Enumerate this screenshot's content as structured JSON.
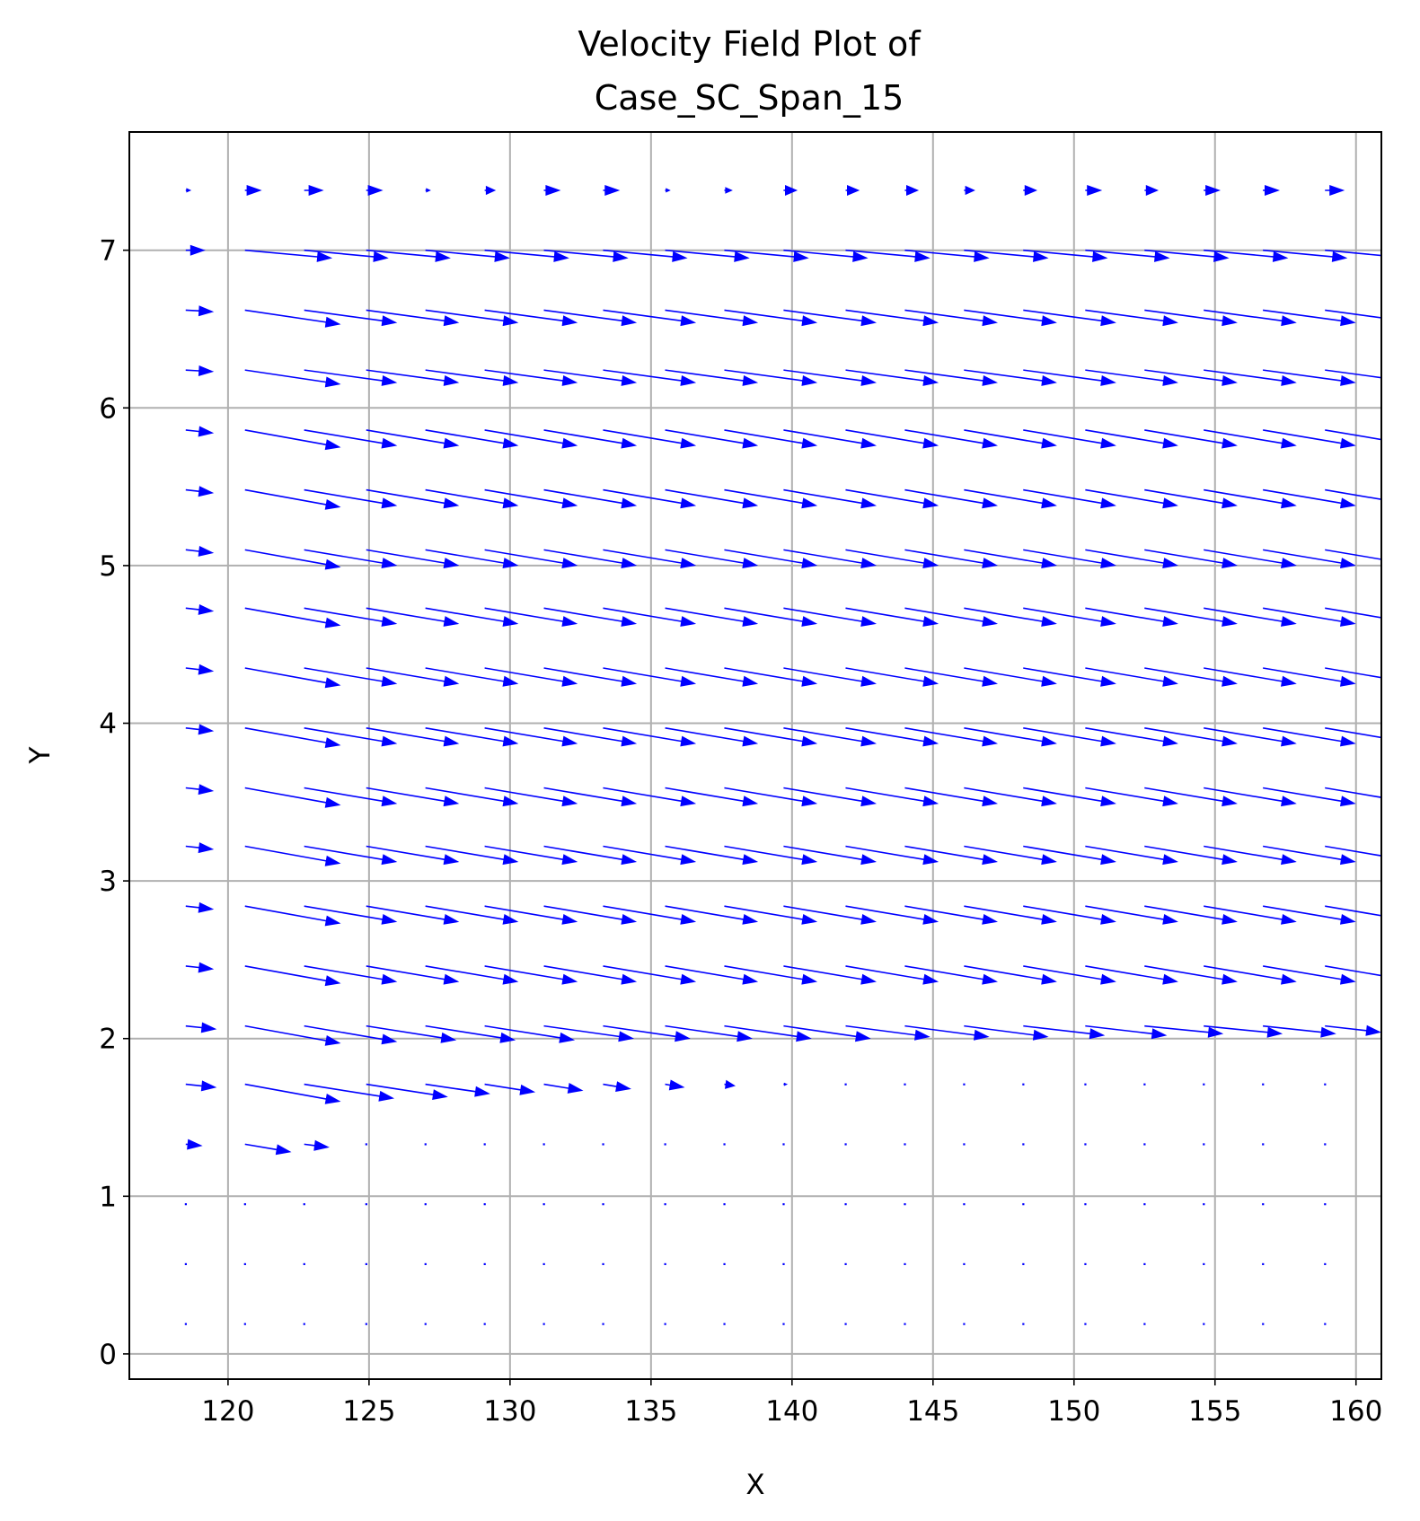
{
  "chart_data": {
    "type": "quiver",
    "title": [
      "Velocity Field Plot of",
      "Case_SC_Span_15"
    ],
    "xlabel": "X",
    "ylabel": "Y",
    "xlim": [
      116.5,
      160.9
    ],
    "ylim": [
      -0.16,
      7.75
    ],
    "xticks": [
      120,
      125,
      130,
      135,
      140,
      145,
      150,
      155,
      160
    ],
    "yticks": [
      0,
      1,
      2,
      3,
      4,
      5,
      6,
      7
    ],
    "grid": true,
    "arrow_color": "#0000ff",
    "x": [
      118.5,
      120.6,
      122.7,
      124.9,
      127.0,
      129.1,
      131.2,
      133.3,
      135.5,
      137.6,
      139.7,
      141.9,
      144.0,
      146.1,
      148.2,
      150.4,
      152.5,
      154.6,
      156.7,
      158.9
    ],
    "y": [
      0.19,
      0.57,
      0.95,
      1.33,
      1.71,
      2.08,
      2.46,
      2.84,
      3.22,
      3.59,
      3.97,
      4.35,
      4.73,
      5.1,
      5.48,
      5.86,
      6.24,
      6.62,
      7.0,
      7.38
    ],
    "rows": [
      {
        "y": 0.19,
        "u": [
          0,
          0,
          0,
          0,
          0,
          0,
          0,
          0,
          0,
          0,
          0,
          0,
          0,
          0,
          0,
          0,
          0,
          0,
          0,
          0
        ],
        "v": [
          0,
          0,
          0,
          0,
          0,
          0,
          0,
          0,
          0,
          0,
          0,
          0,
          0,
          0,
          0,
          0,
          0,
          0,
          0,
          0
        ]
      },
      {
        "y": 0.57,
        "u": [
          0,
          0,
          0,
          0,
          0,
          0,
          0,
          0,
          0,
          0,
          0,
          0,
          0,
          0,
          0,
          0,
          0,
          0,
          0,
          0
        ],
        "v": [
          0,
          0,
          0,
          0,
          0,
          0,
          0,
          0,
          0,
          0,
          0,
          0,
          0,
          0,
          0,
          0,
          0,
          0,
          0,
          0
        ]
      },
      {
        "y": 0.95,
        "u": [
          0,
          0,
          0,
          0,
          0,
          0,
          0,
          0,
          0,
          0,
          0,
          0,
          0,
          0,
          0,
          0,
          0,
          0,
          0,
          0
        ],
        "v": [
          0,
          0,
          0,
          0,
          0,
          0,
          0,
          0,
          0,
          0,
          0,
          0,
          0,
          0,
          0,
          0,
          0,
          0,
          0,
          0
        ]
      },
      {
        "y": 1.33,
        "u": [
          0.6,
          1.65,
          0.9,
          0,
          0,
          0,
          0,
          0,
          0,
          0,
          0,
          0,
          0,
          0,
          0,
          0,
          0,
          0,
          0,
          0
        ],
        "v": [
          -0.01,
          -0.05,
          -0.02,
          0,
          0,
          0,
          0,
          0,
          0,
          0,
          0,
          0,
          0,
          0,
          0,
          0,
          0,
          0,
          0,
          0
        ]
      },
      {
        "y": 1.71,
        "u": [
          1.1,
          3.4,
          3.2,
          2.9,
          2.3,
          1.8,
          1.4,
          1.0,
          0.7,
          0.4,
          0.15,
          0.05,
          0,
          0,
          0,
          0,
          0,
          0,
          0,
          0
        ],
        "v": [
          -0.02,
          -0.11,
          -0.09,
          -0.08,
          -0.06,
          -0.05,
          -0.04,
          -0.03,
          -0.02,
          -0.01,
          0,
          0,
          0,
          0,
          0,
          0,
          0,
          0,
          0,
          0
        ]
      },
      {
        "y": 2.08,
        "u": [
          1.1,
          3.4,
          3.3,
          3.2,
          3.2,
          3.2,
          3.2,
          3.1,
          3.1,
          3.1,
          3.1,
          3.0,
          3.0,
          3.0,
          2.9,
          2.9,
          2.8,
          2.8,
          2.6,
          2.0
        ],
        "v": [
          -0.02,
          -0.11,
          -0.1,
          -0.09,
          -0.09,
          -0.09,
          -0.08,
          -0.08,
          -0.08,
          -0.08,
          -0.08,
          -0.07,
          -0.07,
          -0.07,
          -0.06,
          -0.06,
          -0.05,
          -0.05,
          -0.05,
          -0.04
        ]
      },
      {
        "y": 2.46,
        "u": [
          1.0,
          3.4,
          3.3,
          3.3,
          3.3,
          3.3,
          3.3,
          3.3,
          3.3,
          3.3,
          3.3,
          3.3,
          3.3,
          3.3,
          3.3,
          3.3,
          3.3,
          3.3,
          3.3,
          3.3
        ],
        "v": [
          -0.02,
          -0.11,
          -0.1,
          -0.1,
          -0.1,
          -0.1,
          -0.1,
          -0.1,
          -0.1,
          -0.1,
          -0.1,
          -0.1,
          -0.1,
          -0.1,
          -0.1,
          -0.1,
          -0.1,
          -0.1,
          -0.1,
          -0.1
        ]
      },
      {
        "y": 2.84,
        "u": [
          1.0,
          3.4,
          3.3,
          3.3,
          3.3,
          3.3,
          3.3,
          3.3,
          3.3,
          3.3,
          3.3,
          3.3,
          3.3,
          3.3,
          3.3,
          3.3,
          3.3,
          3.3,
          3.3,
          3.3
        ],
        "v": [
          -0.02,
          -0.11,
          -0.1,
          -0.1,
          -0.1,
          -0.1,
          -0.1,
          -0.1,
          -0.1,
          -0.1,
          -0.1,
          -0.1,
          -0.1,
          -0.1,
          -0.1,
          -0.1,
          -0.1,
          -0.1,
          -0.1,
          -0.1
        ]
      },
      {
        "y": 3.22,
        "u": [
          1.0,
          3.4,
          3.3,
          3.3,
          3.3,
          3.3,
          3.3,
          3.3,
          3.3,
          3.3,
          3.3,
          3.3,
          3.3,
          3.3,
          3.3,
          3.3,
          3.3,
          3.3,
          3.3,
          3.3
        ],
        "v": [
          -0.02,
          -0.11,
          -0.1,
          -0.1,
          -0.1,
          -0.1,
          -0.1,
          -0.1,
          -0.1,
          -0.1,
          -0.1,
          -0.1,
          -0.1,
          -0.1,
          -0.1,
          -0.1,
          -0.1,
          -0.1,
          -0.1,
          -0.1
        ]
      },
      {
        "y": 3.59,
        "u": [
          1.0,
          3.4,
          3.3,
          3.3,
          3.3,
          3.3,
          3.3,
          3.3,
          3.3,
          3.3,
          3.3,
          3.3,
          3.3,
          3.3,
          3.3,
          3.3,
          3.3,
          3.3,
          3.3,
          3.3
        ],
        "v": [
          -0.02,
          -0.11,
          -0.1,
          -0.1,
          -0.1,
          -0.1,
          -0.1,
          -0.1,
          -0.1,
          -0.1,
          -0.1,
          -0.1,
          -0.1,
          -0.1,
          -0.1,
          -0.1,
          -0.1,
          -0.1,
          -0.1,
          -0.1
        ]
      },
      {
        "y": 3.97,
        "u": [
          1.0,
          3.4,
          3.3,
          3.3,
          3.3,
          3.3,
          3.3,
          3.3,
          3.3,
          3.3,
          3.3,
          3.3,
          3.3,
          3.3,
          3.3,
          3.3,
          3.3,
          3.3,
          3.3,
          3.3
        ],
        "v": [
          -0.02,
          -0.11,
          -0.1,
          -0.1,
          -0.1,
          -0.1,
          -0.1,
          -0.1,
          -0.1,
          -0.1,
          -0.1,
          -0.1,
          -0.1,
          -0.1,
          -0.1,
          -0.1,
          -0.1,
          -0.1,
          -0.1,
          -0.1
        ]
      },
      {
        "y": 4.35,
        "u": [
          1.0,
          3.4,
          3.3,
          3.3,
          3.3,
          3.3,
          3.3,
          3.3,
          3.3,
          3.3,
          3.3,
          3.3,
          3.3,
          3.3,
          3.3,
          3.3,
          3.3,
          3.3,
          3.3,
          3.3
        ],
        "v": [
          -0.02,
          -0.11,
          -0.1,
          -0.1,
          -0.1,
          -0.1,
          -0.1,
          -0.1,
          -0.1,
          -0.1,
          -0.1,
          -0.1,
          -0.1,
          -0.1,
          -0.1,
          -0.1,
          -0.1,
          -0.1,
          -0.1,
          -0.1
        ]
      },
      {
        "y": 4.73,
        "u": [
          1.0,
          3.4,
          3.3,
          3.3,
          3.3,
          3.3,
          3.3,
          3.3,
          3.3,
          3.3,
          3.3,
          3.3,
          3.3,
          3.3,
          3.3,
          3.3,
          3.3,
          3.3,
          3.3,
          3.3
        ],
        "v": [
          -0.02,
          -0.11,
          -0.1,
          -0.1,
          -0.1,
          -0.1,
          -0.1,
          -0.1,
          -0.1,
          -0.1,
          -0.1,
          -0.1,
          -0.1,
          -0.1,
          -0.1,
          -0.1,
          -0.1,
          -0.1,
          -0.1,
          -0.1
        ]
      },
      {
        "y": 5.1,
        "u": [
          1.0,
          3.4,
          3.3,
          3.3,
          3.3,
          3.3,
          3.3,
          3.3,
          3.3,
          3.3,
          3.3,
          3.3,
          3.3,
          3.3,
          3.3,
          3.3,
          3.3,
          3.3,
          3.3,
          3.3
        ],
        "v": [
          -0.02,
          -0.11,
          -0.1,
          -0.1,
          -0.1,
          -0.1,
          -0.1,
          -0.1,
          -0.1,
          -0.1,
          -0.1,
          -0.1,
          -0.1,
          -0.1,
          -0.1,
          -0.1,
          -0.1,
          -0.1,
          -0.1,
          -0.1
        ]
      },
      {
        "y": 5.48,
        "u": [
          1.0,
          3.4,
          3.3,
          3.3,
          3.3,
          3.3,
          3.3,
          3.3,
          3.3,
          3.3,
          3.3,
          3.3,
          3.3,
          3.3,
          3.3,
          3.3,
          3.3,
          3.3,
          3.3,
          3.3
        ],
        "v": [
          -0.02,
          -0.11,
          -0.1,
          -0.1,
          -0.1,
          -0.1,
          -0.1,
          -0.1,
          -0.1,
          -0.1,
          -0.1,
          -0.1,
          -0.1,
          -0.1,
          -0.1,
          -0.1,
          -0.1,
          -0.1,
          -0.1,
          -0.1
        ]
      },
      {
        "y": 5.86,
        "u": [
          1.0,
          3.4,
          3.3,
          3.3,
          3.3,
          3.3,
          3.3,
          3.3,
          3.3,
          3.3,
          3.3,
          3.3,
          3.3,
          3.3,
          3.3,
          3.3,
          3.3,
          3.3,
          3.3,
          3.3
        ],
        "v": [
          -0.02,
          -0.11,
          -0.1,
          -0.1,
          -0.1,
          -0.1,
          -0.1,
          -0.1,
          -0.1,
          -0.1,
          -0.1,
          -0.1,
          -0.1,
          -0.1,
          -0.1,
          -0.1,
          -0.1,
          -0.1,
          -0.1,
          -0.1
        ]
      },
      {
        "y": 6.24,
        "u": [
          1.0,
          3.4,
          3.3,
          3.3,
          3.3,
          3.3,
          3.3,
          3.3,
          3.3,
          3.3,
          3.3,
          3.3,
          3.3,
          3.3,
          3.3,
          3.3,
          3.3,
          3.3,
          3.3,
          3.3
        ],
        "v": [
          -0.01,
          -0.09,
          -0.08,
          -0.08,
          -0.08,
          -0.08,
          -0.08,
          -0.08,
          -0.08,
          -0.08,
          -0.08,
          -0.08,
          -0.08,
          -0.08,
          -0.08,
          -0.08,
          -0.08,
          -0.08,
          -0.08,
          -0.08
        ]
      },
      {
        "y": 6.62,
        "u": [
          1.0,
          3.4,
          3.3,
          3.3,
          3.3,
          3.3,
          3.3,
          3.3,
          3.3,
          3.3,
          3.3,
          3.3,
          3.3,
          3.3,
          3.3,
          3.3,
          3.3,
          3.3,
          3.3,
          3.3
        ],
        "v": [
          -0.01,
          -0.09,
          -0.08,
          -0.08,
          -0.08,
          -0.08,
          -0.08,
          -0.08,
          -0.08,
          -0.08,
          -0.08,
          -0.08,
          -0.08,
          -0.08,
          -0.08,
          -0.08,
          -0.08,
          -0.08,
          -0.08,
          -0.08
        ]
      },
      {
        "y": 7.0,
        "u": [
          0.7,
          3.1,
          3.0,
          3.0,
          3.0,
          3.0,
          3.0,
          3.0,
          3.0,
          3.0,
          3.0,
          3.0,
          3.0,
          3.0,
          3.0,
          3.0,
          3.0,
          3.0,
          3.0,
          3.0
        ],
        "v": [
          0,
          -0.05,
          -0.05,
          -0.05,
          -0.05,
          -0.05,
          -0.05,
          -0.05,
          -0.05,
          -0.05,
          -0.05,
          -0.05,
          -0.05,
          -0.05,
          -0.05,
          -0.05,
          -0.05,
          -0.05,
          -0.05,
          -0.05
        ]
      },
      {
        "y": 7.38,
        "u": [
          0.2,
          0.6,
          0.7,
          0.6,
          0.2,
          0.4,
          0.6,
          0.6,
          0.2,
          0.3,
          0.5,
          0.5,
          0.5,
          0.4,
          0.5,
          0.6,
          0.5,
          0.6,
          0.6,
          0.7
        ],
        "v": [
          0,
          0,
          0,
          0,
          0,
          0,
          0,
          0,
          0,
          0,
          0,
          0,
          0,
          0,
          0,
          0,
          0,
          0,
          0,
          0
        ]
      }
    ]
  }
}
